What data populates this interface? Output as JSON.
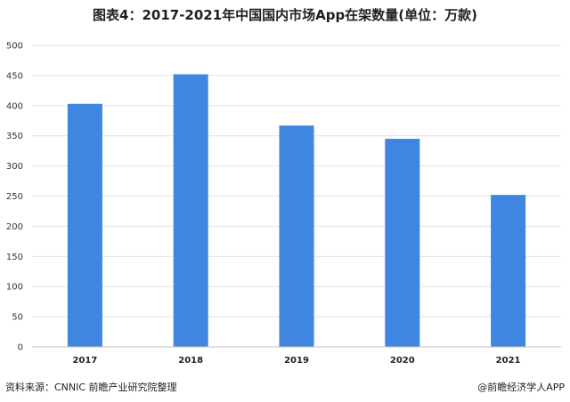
{
  "footer": {
    "source": "资料来源：CNNIC 前瞻产业研究院整理",
    "brand": "@前瞻经济学人APP"
  },
  "colors": {
    "bar": "#3e86e0",
    "gridline": "#e2e2e2",
    "axis": "#bfbfbf"
  },
  "chart_data": {
    "type": "bar",
    "title": "图表4：2017-2021年中国国内市场App在架数量(单位：万款)",
    "xlabel": "",
    "ylabel": "",
    "categories": [
      "2017",
      "2018",
      "2019",
      "2020",
      "2021"
    ],
    "values": [
      403,
      452,
      367,
      345,
      252
    ],
    "ylim": [
      0,
      500
    ],
    "yticks": [
      0,
      50,
      100,
      150,
      200,
      250,
      300,
      350,
      400,
      450,
      500
    ],
    "grid": true,
    "legend": "none"
  }
}
